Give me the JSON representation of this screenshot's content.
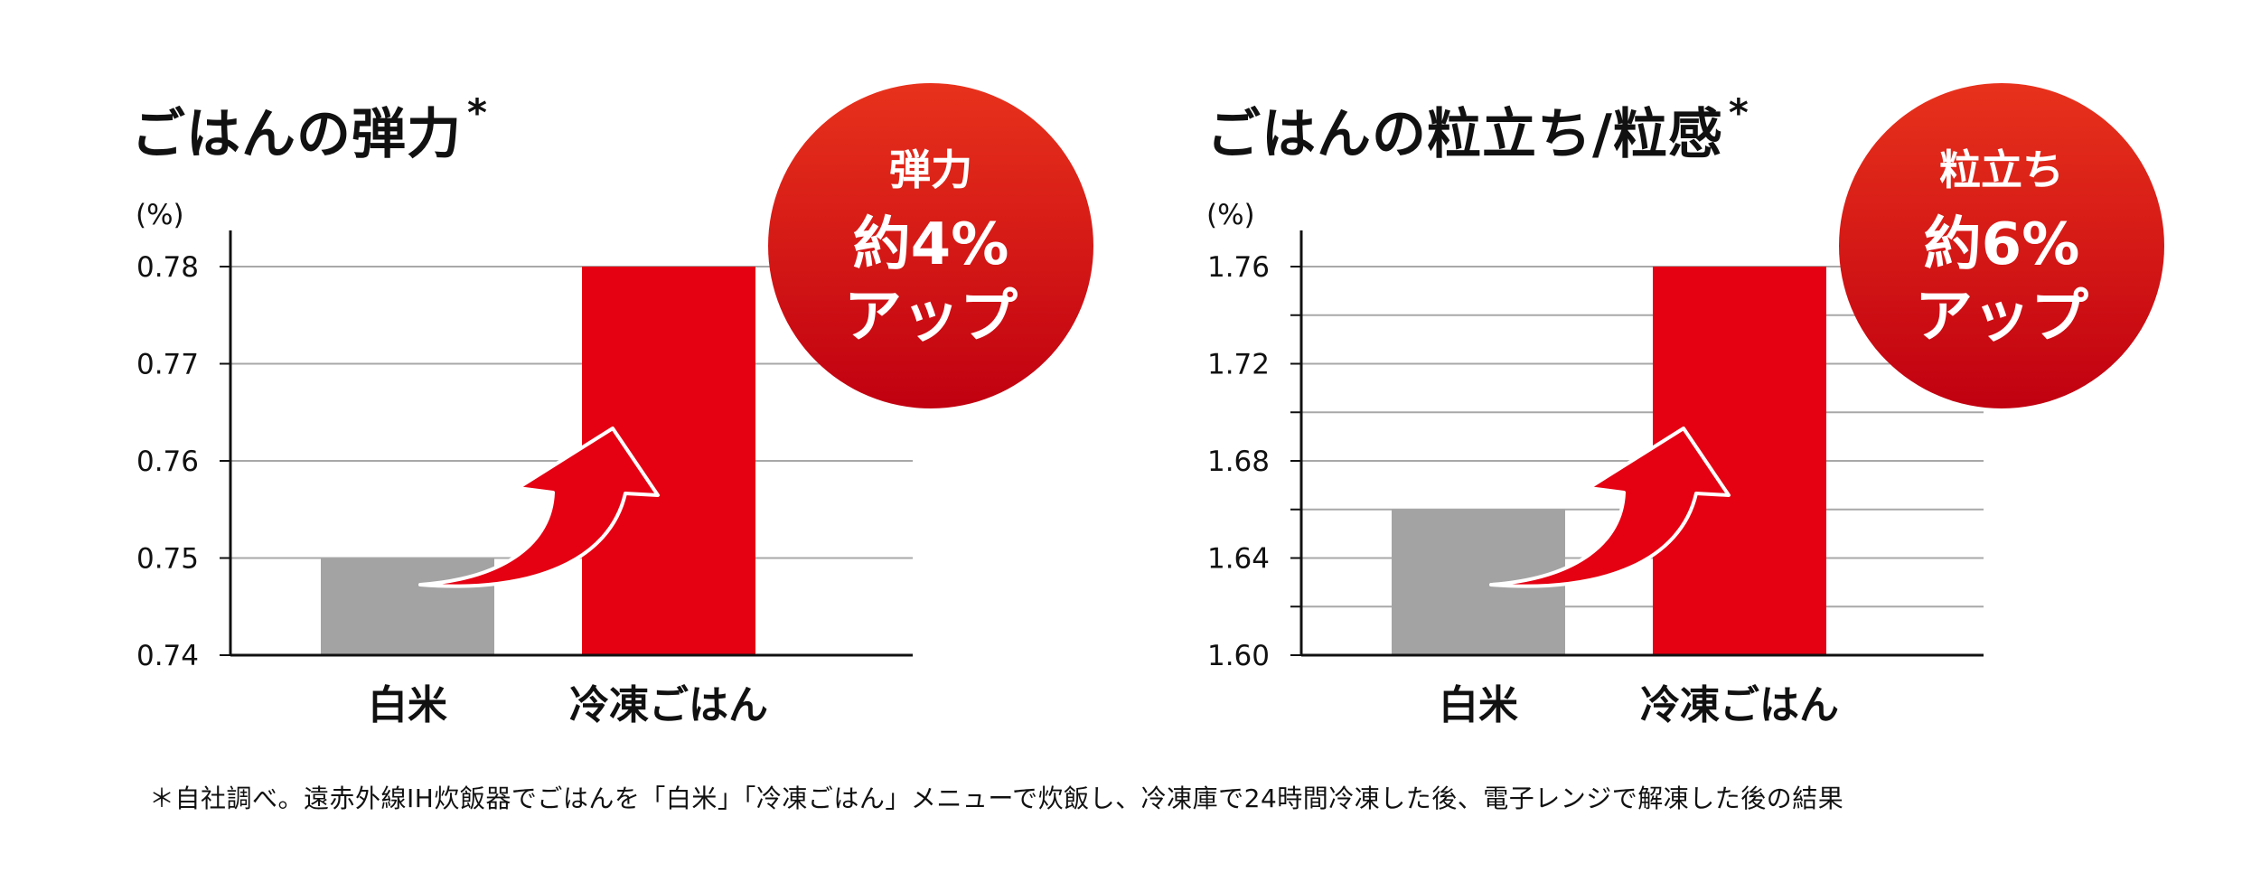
{
  "chart_data": [
    {
      "type": "bar",
      "title": "ごはんの弾力",
      "title_mark": "*",
      "unit_label": "(%)",
      "categories": [
        "白米",
        "冷凍ごはん"
      ],
      "values": [
        0.75,
        0.78
      ],
      "ylim": [
        0.74,
        0.78
      ],
      "yticks": [
        "0.74",
        "0.75",
        "0.76",
        "0.77",
        "0.78"
      ],
      "grid": true,
      "bar_colors": [
        "#a3a3a3",
        "#e50012"
      ],
      "badge": {
        "line1": "弾力",
        "line2": "約4%",
        "line3": "アップ"
      }
    },
    {
      "type": "bar",
      "title": "ごはんの粒立ち/粒感",
      "title_mark": "*",
      "unit_label": "(%)",
      "categories": [
        "白米",
        "冷凍ごはん"
      ],
      "values": [
        1.66,
        1.76
      ],
      "ylim": [
        1.6,
        1.76
      ],
      "yticks": [
        "1.60",
        "1.64",
        "1.68",
        "1.72",
        "1.76"
      ],
      "minor_grid_step": 0.02,
      "grid": true,
      "bar_colors": [
        "#a3a3a3",
        "#e50012"
      ],
      "badge": {
        "line1": "粒立ち",
        "line2": "約6%",
        "line3": "アップ"
      }
    }
  ],
  "footnote": "＊自社調べ。遠赤外線IH炊飯器でごはんを「白米」「冷凍ごはん」メニューで炊飯し、冷凍庫で24時間冷凍した後、電子レンジで解凍した後の結果",
  "colors": {
    "accent_red": "#e50012",
    "bar_gray": "#a3a3a3",
    "grid_gray": "#a8a8a8",
    "badge_top": "#e8321c",
    "badge_bottom": "#c10010"
  }
}
